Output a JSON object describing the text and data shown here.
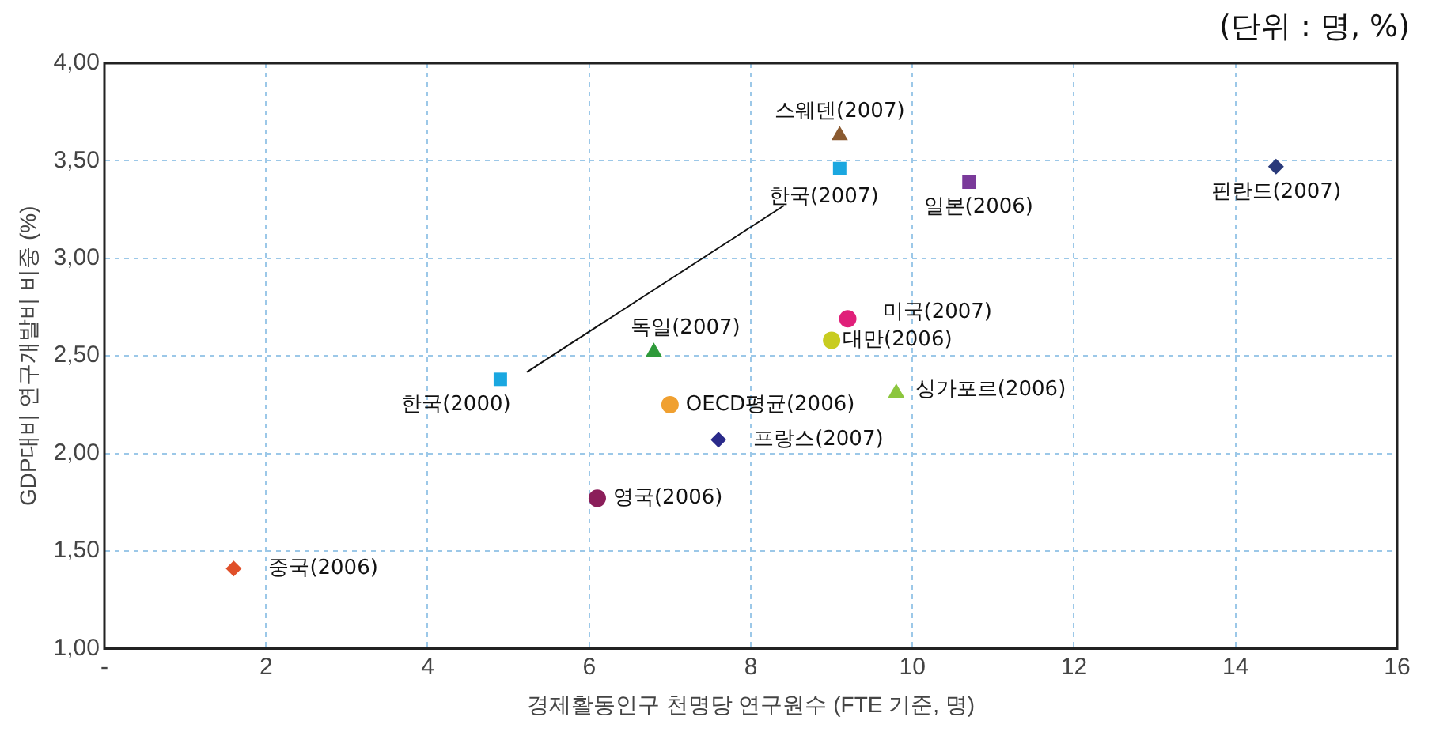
{
  "chart_data": {
    "type": "scatter",
    "xlabel": "경제활동인구 천명당 연구원수 (FTE 기준, 명)",
    "ylabel": "GDP대비 연구개발비 비중 (%)",
    "annotations": [
      "(단위 : 명, %)"
    ],
    "xlim": [
      0,
      16
    ],
    "xticks": [
      {
        "value": 0,
        "label": "-"
      },
      2,
      4,
      6,
      8,
      10,
      12,
      14,
      16
    ],
    "ylim": [
      1,
      4
    ],
    "yticks": [
      {
        "value": 1,
        "label": "1,00"
      },
      {
        "value": 1.5,
        "label": "1,50"
      },
      {
        "value": 2,
        "label": "2,00"
      },
      {
        "value": 2.5,
        "label": "2,50"
      },
      {
        "value": 3,
        "label": "3,00"
      },
      {
        "value": 3.5,
        "label": "3,50"
      },
      {
        "value": 4,
        "label": "4,00"
      }
    ],
    "grid": true,
    "legend": false,
    "series": [
      {
        "name": "중국(2006)",
        "color": "#e0502a",
        "marker": "diamond",
        "x": [
          1.6
        ],
        "values": [
          1.41
        ]
      },
      {
        "name": "한국(2000)",
        "color": "#1aa7e0",
        "marker": "square",
        "x": [
          4.9
        ],
        "values": [
          2.38
        ]
      },
      {
        "name": "영국(2006)",
        "color": "#8b1e5a",
        "marker": "circle",
        "x": [
          6.1
        ],
        "values": [
          1.77
        ]
      },
      {
        "name": "독일(2007)",
        "color": "#2e9a3a",
        "marker": "triangle",
        "x": [
          6.8
        ],
        "values": [
          2.52
        ]
      },
      {
        "name": "OECD평균(2006)",
        "color": "#f0a030",
        "marker": "circle",
        "x": [
          7.0
        ],
        "values": [
          2.25
        ]
      },
      {
        "name": "프랑스(2007)",
        "color": "#2a2a8a",
        "marker": "diamond",
        "x": [
          7.6
        ],
        "values": [
          2.07
        ]
      },
      {
        "name": "대만(2006)",
        "color": "#c8cc20",
        "marker": "circle",
        "x": [
          9.0
        ],
        "values": [
          2.58
        ]
      },
      {
        "name": "미국(2007)",
        "color": "#e0207a",
        "marker": "circle",
        "x": [
          9.2
        ],
        "values": [
          2.69
        ]
      },
      {
        "name": "싱가포르(2006)",
        "color": "#8cc63e",
        "marker": "triangle",
        "x": [
          9.8
        ],
        "values": [
          2.31
        ]
      },
      {
        "name": "스웨덴(2007)",
        "color": "#8a5a30",
        "marker": "triangle",
        "x": [
          9.1
        ],
        "values": [
          3.63
        ]
      },
      {
        "name": "한국(2007)",
        "color": "#1aa7e0",
        "marker": "square",
        "x": [
          9.1
        ],
        "values": [
          3.46
        ]
      },
      {
        "name": "일본(2006)",
        "color": "#7a3a9a",
        "marker": "square",
        "x": [
          10.7
        ],
        "values": [
          3.39
        ]
      },
      {
        "name": "핀란드(2007)",
        "color": "#2a3a7a",
        "marker": "diamond",
        "x": [
          14.5
        ],
        "values": [
          3.47
        ]
      }
    ]
  }
}
